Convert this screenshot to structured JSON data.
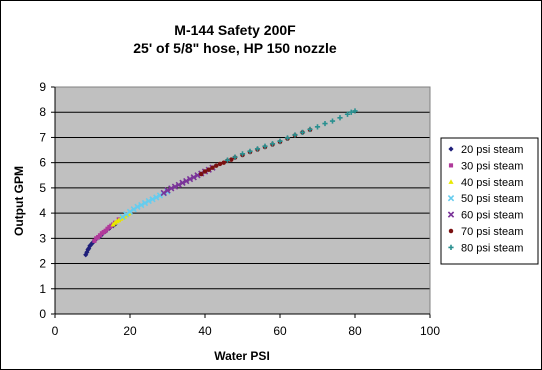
{
  "chart_data": {
    "type": "scatter",
    "title": "M-144 Safety 200F",
    "subtitle": "25' of 5/8\" hose, HP 150 nozzle",
    "xlabel": "Water PSI",
    "ylabel": "Output GPM",
    "xlim": [
      0,
      100
    ],
    "ylim": [
      0,
      9
    ],
    "xticks": [
      "0",
      "20",
      "40",
      "60",
      "80",
      "100"
    ],
    "yticks": [
      "0",
      "1",
      "2",
      "3",
      "4",
      "5",
      "6",
      "7",
      "8",
      "9"
    ],
    "grid": "horizontal",
    "plot_background": "#c0c0c0",
    "legend_position": "right",
    "series": [
      {
        "name": "20 psi steam",
        "color": "#1f1f7a",
        "marker": "diamond",
        "x": [
          8.2,
          8.5,
          8.8,
          9.0,
          9.3,
          9.6,
          10.0,
          10.5,
          11.0,
          11.8,
          12.5,
          13.5,
          14.5,
          15.5,
          16.0
        ],
        "y": [
          2.35,
          2.45,
          2.55,
          2.6,
          2.7,
          2.75,
          2.82,
          2.9,
          2.98,
          3.05,
          3.15,
          3.28,
          3.4,
          3.5,
          3.55
        ]
      },
      {
        "name": "30 psi steam",
        "color": "#b03a9a",
        "marker": "square",
        "x": [
          10.5,
          11.0,
          11.5,
          12.0,
          12.5,
          13.0,
          13.5,
          14.0,
          14.5,
          15.0,
          15.5,
          16.0,
          17.0
        ],
        "y": [
          2.9,
          3.0,
          3.05,
          3.12,
          3.2,
          3.25,
          3.3,
          3.38,
          3.45,
          3.5,
          3.55,
          3.62,
          3.75
        ]
      },
      {
        "name": "40 psi steam",
        "color": "#e8e800",
        "marker": "triangle",
        "x": [
          15.5,
          16.0,
          16.5,
          17.0,
          17.5,
          18.0,
          18.5,
          19.0,
          19.5,
          20.0
        ],
        "y": [
          3.55,
          3.62,
          3.68,
          3.72,
          3.78,
          3.82,
          3.87,
          3.92,
          3.97,
          4.02
        ]
      },
      {
        "name": "50 psi steam",
        "color": "#66ccee",
        "marker": "x",
        "x": [
          18.0,
          19.0,
          20.0,
          21.0,
          22.0,
          23.0,
          24.0,
          25.0,
          26.0,
          27.0,
          28.0,
          29.0,
          30.0
        ],
        "y": [
          3.85,
          3.95,
          4.05,
          4.15,
          4.25,
          4.32,
          4.4,
          4.48,
          4.55,
          4.62,
          4.7,
          4.78,
          4.85
        ]
      },
      {
        "name": "60 psi steam",
        "color": "#7a3399",
        "marker": "x",
        "x": [
          29.0,
          30.0,
          31.0,
          32.0,
          33.0,
          34.0,
          35.0,
          36.0,
          37.0,
          38.0,
          39.0,
          40.0,
          41.0,
          42.0
        ],
        "y": [
          4.8,
          4.9,
          4.98,
          5.05,
          5.12,
          5.2,
          5.27,
          5.35,
          5.42,
          5.5,
          5.57,
          5.65,
          5.72,
          5.8
        ]
      },
      {
        "name": "70 psi steam",
        "color": "#7a1010",
        "marker": "circle",
        "x": [
          39.0,
          40.0,
          41.0,
          42.0,
          43.0,
          44.0,
          45.0,
          46.0,
          47.0,
          48.0,
          50.0,
          52.0,
          54.0,
          56.0,
          58.0,
          60.0,
          62.0,
          64.0,
          66.0,
          68.0
        ],
        "y": [
          5.55,
          5.65,
          5.72,
          5.8,
          5.88,
          5.95,
          6.0,
          6.08,
          6.12,
          6.2,
          6.3,
          6.42,
          6.52,
          6.62,
          6.72,
          6.82,
          6.95,
          7.08,
          7.2,
          7.3
        ]
      },
      {
        "name": "80 psi steam",
        "color": "#2a9090",
        "marker": "plus",
        "x": [
          46.0,
          48.0,
          50.0,
          52.0,
          54.0,
          56.0,
          58.0,
          60.0,
          62.0,
          64.0,
          66.0,
          68.0,
          70.0,
          72.0,
          74.0,
          76.0,
          78.0,
          79.0,
          80.0
        ],
        "y": [
          6.1,
          6.22,
          6.35,
          6.45,
          6.55,
          6.65,
          6.75,
          6.85,
          6.98,
          7.1,
          7.2,
          7.32,
          7.42,
          7.55,
          7.65,
          7.78,
          7.92,
          8.0,
          8.05
        ]
      }
    ]
  }
}
